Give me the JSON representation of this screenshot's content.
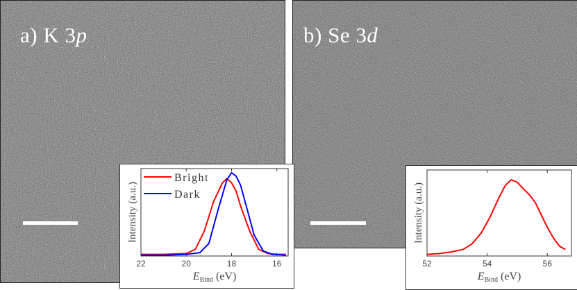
{
  "figure": {
    "panel_a": {
      "label_prefix": "a) K 3",
      "label_orbital": "p",
      "background": "#6f6f6f"
    },
    "panel_b": {
      "label_prefix": "b) Se 3",
      "label_orbital": "d",
      "background": "#6f6f6f"
    }
  },
  "chart_data": [
    {
      "type": "line",
      "xlabel": "E",
      "xlabel_sub": "Bind",
      "xlabel_unit": "(eV)",
      "ylabel": "Intensity (a.u.)",
      "xlim": [
        22,
        15.5
      ],
      "x_reversed": true,
      "ylim": [
        0,
        1.05
      ],
      "xticks": [
        22,
        20,
        18,
        16
      ],
      "legend_placement": "top-left",
      "series": [
        {
          "name": "Bright",
          "color": "#ff0000",
          "x": [
            22,
            21,
            20,
            19.6,
            19.2,
            18.8,
            18.4,
            18.2,
            18.0,
            17.8,
            17.6,
            17.2,
            16.8,
            16.4,
            16,
            15.6
          ],
          "y": [
            0.02,
            0.02,
            0.03,
            0.08,
            0.3,
            0.65,
            0.88,
            0.93,
            0.88,
            0.78,
            0.6,
            0.3,
            0.08,
            0.03,
            0.02,
            0.02
          ]
        },
        {
          "name": "Dark",
          "color": "#0000ff",
          "x": [
            22,
            21,
            20,
            19.4,
            19.0,
            18.6,
            18.2,
            18.0,
            17.8,
            17.6,
            17.3,
            17.0,
            16.6,
            16.2,
            16,
            15.6
          ],
          "y": [
            0.01,
            0.01,
            0.02,
            0.04,
            0.15,
            0.55,
            0.92,
            1.0,
            0.96,
            0.85,
            0.55,
            0.25,
            0.06,
            0.02,
            0.02,
            0.01
          ]
        }
      ]
    },
    {
      "type": "line",
      "xlabel": "E",
      "xlabel_sub": "Bind",
      "xlabel_unit": "(eV)",
      "ylabel": "Intensity (a.u.)",
      "xlim": [
        52,
        56.8
      ],
      "x_reversed": false,
      "ylim": [
        0,
        1.05
      ],
      "xticks": [
        52,
        54,
        56
      ],
      "series": [
        {
          "color": "#ff0000",
          "x": [
            52.0,
            52.4,
            52.8,
            53.2,
            53.5,
            53.8,
            54.1,
            54.4,
            54.6,
            54.8,
            55.0,
            55.2,
            55.4,
            55.6,
            55.8,
            56.0,
            56.2,
            56.4,
            56.6
          ],
          "y": [
            0.02,
            0.03,
            0.05,
            0.08,
            0.15,
            0.28,
            0.48,
            0.72,
            0.86,
            0.93,
            0.9,
            0.82,
            0.75,
            0.65,
            0.5,
            0.35,
            0.22,
            0.12,
            0.08
          ]
        }
      ]
    }
  ]
}
